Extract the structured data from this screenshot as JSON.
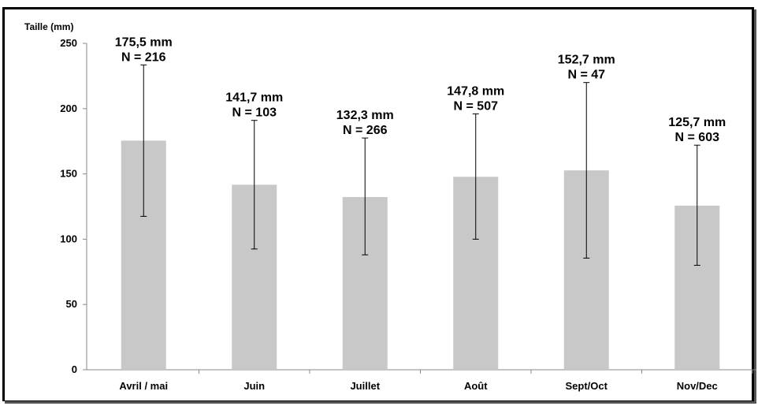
{
  "chart_data": {
    "type": "bar",
    "ylabel": "Taille (mm)",
    "ylim": [
      0,
      250
    ],
    "yticks": [
      "0",
      "50",
      "100",
      "150",
      "200",
      "250"
    ],
    "categories": [
      "Avril / mai",
      "Juin",
      "Juillet",
      "Août",
      "Sept/Oct",
      "Nov/Dec"
    ],
    "values": [
      175.5,
      141.7,
      132.3,
      147.8,
      152.7,
      125.7
    ],
    "error_low": [
      117.5,
      92.5,
      88,
      100,
      85.5,
      80
    ],
    "error_high": [
      233.5,
      191,
      177.5,
      196,
      220,
      172
    ],
    "data_labels": [
      "175,5 mm",
      "141,7 mm",
      "132,3 mm",
      "147,8 mm",
      "152,7 mm",
      "125,7 mm"
    ],
    "n_labels": [
      "N = 216",
      "N = 103",
      "N = 266",
      "N = 507",
      "N = 47",
      "N = 603"
    ],
    "bar_color": "#c8c8c8",
    "grid": false
  }
}
